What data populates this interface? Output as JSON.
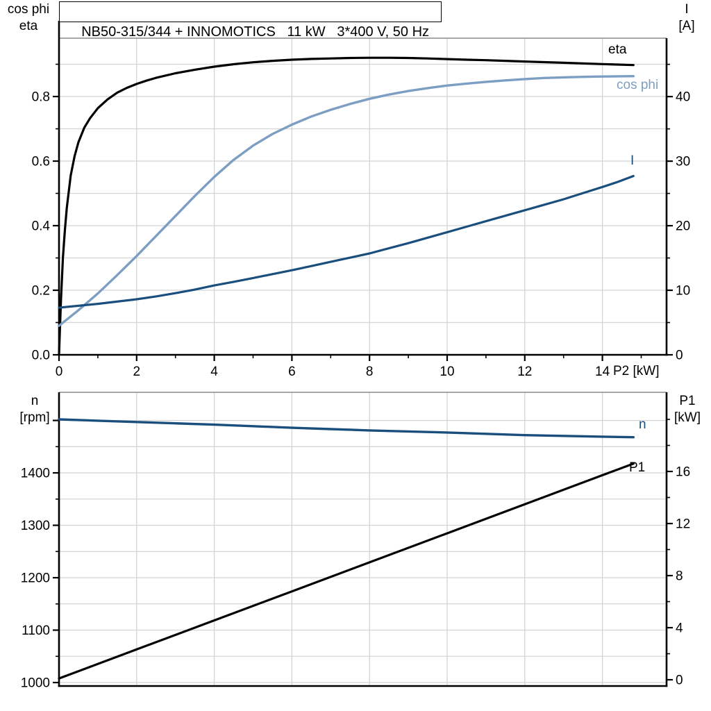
{
  "title": "NB50-315/344 + INNOMOTICS   11 kW   3*400 V, 50 Hz",
  "colors": {
    "eta": "#000000",
    "cos_phi": "#7D9EC3",
    "current": "#1A4F7D",
    "speed": "#1A4F7D",
    "p1": "#000000",
    "grid": "#D4D4D4",
    "axis": "#000000",
    "frame_top": "#8A8A8A"
  },
  "labels": {
    "top_left_line1": "cos phi",
    "top_left_line2": "eta",
    "top_right_line1": "I",
    "top_right_line2": "[A]",
    "bottom_left_line1": "n",
    "bottom_left_line2": "[rpm]",
    "bottom_right_line1": "P1",
    "bottom_right_line2": "[kW]",
    "x_unit": "P2 [kW]",
    "curve_eta": "eta",
    "curve_cos_phi": "cos phi",
    "curve_current": "I",
    "curve_speed": "n",
    "curve_p1": "P1"
  },
  "chart_data": [
    {
      "type": "line",
      "name": "efficiency-cosphi-current-vs-p2",
      "x_axis": {
        "label": "P2 [kW]",
        "min": 0,
        "max": 15.653,
        "major_ticks": [
          {
            "v": 0,
            "label": "0"
          },
          {
            "v": 2,
            "label": "2"
          },
          {
            "v": 4,
            "label": "4"
          },
          {
            "v": 6,
            "label": "6"
          },
          {
            "v": 8,
            "label": "8"
          },
          {
            "v": 10,
            "label": "10"
          },
          {
            "v": 12,
            "label": "12"
          },
          {
            "v": 14,
            "label": "14"
          }
        ],
        "minor_ticks": [
          1,
          3,
          5,
          7,
          9,
          11,
          13,
          15
        ],
        "gridlines": [
          2,
          4,
          6,
          8,
          10,
          12,
          14
        ],
        "show_labels": true
      },
      "left_axis": {
        "label": "cos phi / eta",
        "min": 0,
        "max": 0.9807,
        "major_ticks": [
          {
            "v": 0,
            "label": "0.0"
          },
          {
            "v": 0.2,
            "label": "0.2"
          },
          {
            "v": 0.4,
            "label": "0.4"
          },
          {
            "v": 0.6,
            "label": "0.6"
          },
          {
            "v": 0.8,
            "label": "0.8"
          }
        ],
        "minor_ticks": [
          0.1,
          0.3,
          0.5,
          0.7,
          0.9
        ],
        "gridlines": [
          0.1,
          0.2,
          0.3,
          0.4,
          0.5,
          0.6,
          0.7,
          0.8,
          0.9
        ]
      },
      "right_axis": {
        "label": "I [A]",
        "min": 0,
        "max": 49.05,
        "major_ticks": [
          {
            "v": 0,
            "label": "0"
          },
          {
            "v": 10,
            "label": "10"
          },
          {
            "v": 20,
            "label": "20"
          },
          {
            "v": 30,
            "label": "30"
          },
          {
            "v": 40,
            "label": "40"
          }
        ],
        "minor_ticks": [
          5,
          15,
          25,
          35,
          45
        ],
        "gridlines": []
      },
      "series": [
        {
          "name": "eta",
          "axis": "left",
          "color_key": "eta",
          "width": 3.2,
          "points": [
            [
              0,
              0
            ],
            [
              0.05,
              0.17
            ],
            [
              0.1,
              0.3
            ],
            [
              0.15,
              0.385
            ],
            [
              0.2,
              0.455
            ],
            [
              0.3,
              0.555
            ],
            [
              0.4,
              0.615
            ],
            [
              0.5,
              0.658
            ],
            [
              0.65,
              0.703
            ],
            [
              0.8,
              0.733
            ],
            [
              1,
              0.764
            ],
            [
              1.25,
              0.791
            ],
            [
              1.5,
              0.812
            ],
            [
              1.75,
              0.827
            ],
            [
              2,
              0.839
            ],
            [
              2.25,
              0.849
            ],
            [
              2.5,
              0.858
            ],
            [
              3,
              0.872
            ],
            [
              3.5,
              0.883
            ],
            [
              4,
              0.8925
            ],
            [
              4.5,
              0.9
            ],
            [
              5,
              0.906
            ],
            [
              5.5,
              0.9105
            ],
            [
              6,
              0.914
            ],
            [
              6.5,
              0.9165
            ],
            [
              7,
              0.918
            ],
            [
              7.5,
              0.9195
            ],
            [
              8,
              0.92
            ],
            [
              8.5,
              0.92
            ],
            [
              9,
              0.9195
            ],
            [
              9.5,
              0.918
            ],
            [
              10,
              0.916
            ],
            [
              10.5,
              0.914
            ],
            [
              11,
              0.9125
            ],
            [
              11.5,
              0.9105
            ],
            [
              12,
              0.9085
            ],
            [
              12.5,
              0.9065
            ],
            [
              13,
              0.9045
            ],
            [
              13.5,
              0.9025
            ],
            [
              14,
              0.9005
            ],
            [
              14.4,
              0.899
            ],
            [
              14.8,
              0.8975
            ]
          ]
        },
        {
          "name": "cos phi",
          "axis": "left",
          "color_key": "cos_phi",
          "width": 3.4,
          "points": [
            [
              0,
              0.09
            ],
            [
              0.5,
              0.138
            ],
            [
              1,
              0.19
            ],
            [
              1.5,
              0.247
            ],
            [
              2,
              0.306
            ],
            [
              2.5,
              0.368
            ],
            [
              3,
              0.43
            ],
            [
              3.5,
              0.492
            ],
            [
              4,
              0.551
            ],
            [
              4.5,
              0.604
            ],
            [
              5,
              0.648
            ],
            [
              5.5,
              0.684
            ],
            [
              6,
              0.713
            ],
            [
              6.5,
              0.738
            ],
            [
              7,
              0.759
            ],
            [
              7.5,
              0.777
            ],
            [
              8,
              0.793
            ],
            [
              8.5,
              0.806
            ],
            [
              9,
              0.817
            ],
            [
              9.5,
              0.826
            ],
            [
              10,
              0.834
            ],
            [
              10.5,
              0.84
            ],
            [
              11,
              0.8455
            ],
            [
              11.5,
              0.85
            ],
            [
              12,
              0.854
            ],
            [
              12.5,
              0.8575
            ],
            [
              13,
              0.8595
            ],
            [
              13.5,
              0.861
            ],
            [
              14,
              0.862
            ],
            [
              14.8,
              0.863
            ]
          ]
        },
        {
          "name": "I",
          "axis": "right",
          "color_key": "current",
          "width": 3.2,
          "points": [
            [
              0,
              7.3
            ],
            [
              1,
              7.9
            ],
            [
              2,
              8.6
            ],
            [
              2.5,
              9.05
            ],
            [
              3,
              9.55
            ],
            [
              3.5,
              10.1
            ],
            [
              4,
              10.75
            ],
            [
              4.5,
              11.3
            ],
            [
              5,
              11.9
            ],
            [
              5.5,
              12.5
            ],
            [
              6,
              13.1
            ],
            [
              6.5,
              13.75
            ],
            [
              7,
              14.4
            ],
            [
              7.5,
              15.05
            ],
            [
              8,
              15.7
            ],
            [
              8.5,
              16.5
            ],
            [
              9,
              17.3
            ],
            [
              9.5,
              18.15
            ],
            [
              10,
              19.0
            ],
            [
              10.5,
              19.85
            ],
            [
              11,
              20.7
            ],
            [
              11.5,
              21.55
            ],
            [
              12,
              22.4
            ],
            [
              12.5,
              23.25
            ],
            [
              13,
              24.1
            ],
            [
              13.5,
              25.05
            ],
            [
              14,
              26.0
            ],
            [
              14.4,
              26.8
            ],
            [
              14.8,
              27.7
            ]
          ]
        }
      ]
    },
    {
      "type": "line",
      "name": "speed-p1-vs-p2",
      "x_axis": {
        "label": "",
        "min": 0,
        "max": 15.653,
        "major_ticks": [],
        "minor_ticks": [],
        "gridlines": [
          2,
          4,
          6,
          8,
          10,
          12,
          14
        ],
        "show_labels": false
      },
      "left_axis": {
        "label": "n [rpm]",
        "min": 993.4,
        "max": 1553.7,
        "major_ticks": [
          {
            "v": 1000,
            "label": "1000"
          },
          {
            "v": 1100,
            "label": "1100"
          },
          {
            "v": 1200,
            "label": "1200"
          },
          {
            "v": 1300,
            "label": "1300"
          },
          {
            "v": 1400,
            "label": "1400"
          },
          {
            "v": 1500,
            "label": ""
          }
        ],
        "minor_ticks": [
          1050,
          1150,
          1250,
          1350,
          1450
        ],
        "gridlines": [
          1000,
          1050,
          1100,
          1150,
          1200,
          1250,
          1300,
          1350,
          1400,
          1450,
          1500
        ]
      },
      "right_axis": {
        "label": "P1 [kW]",
        "min": -0.48,
        "max": 22.08,
        "major_ticks": [
          {
            "v": 0,
            "label": "0"
          },
          {
            "v": 4,
            "label": "4"
          },
          {
            "v": 8,
            "label": "8"
          },
          {
            "v": 12,
            "label": "12"
          },
          {
            "v": 16,
            "label": "16"
          }
        ],
        "minor_ticks": [
          2,
          6,
          10,
          14,
          18,
          20
        ],
        "gridlines": []
      },
      "series": [
        {
          "name": "n",
          "axis": "left",
          "color_key": "speed",
          "width": 3.4,
          "points": [
            [
              0,
              1502
            ],
            [
              1,
              1499.5
            ],
            [
              2,
              1497
            ],
            [
              3,
              1494.5
            ],
            [
              4,
              1492
            ],
            [
              5,
              1489
            ],
            [
              6,
              1486
            ],
            [
              7,
              1483.5
            ],
            [
              8,
              1481
            ],
            [
              9,
              1479
            ],
            [
              10,
              1477
            ],
            [
              11,
              1474.5
            ],
            [
              12,
              1472
            ],
            [
              13,
              1470.5
            ],
            [
              14,
              1469
            ],
            [
              14.8,
              1468
            ]
          ]
        },
        {
          "name": "P1",
          "axis": "right",
          "color_key": "p1",
          "width": 3.2,
          "points": [
            [
              0,
              0.1
            ],
            [
              2,
              2.33
            ],
            [
              4,
              4.56
            ],
            [
              6,
              6.79
            ],
            [
              8,
              9.02
            ],
            [
              10,
              11.25
            ],
            [
              12,
              13.48
            ],
            [
              14,
              15.71
            ],
            [
              14.8,
              16.6
            ]
          ]
        }
      ]
    }
  ]
}
